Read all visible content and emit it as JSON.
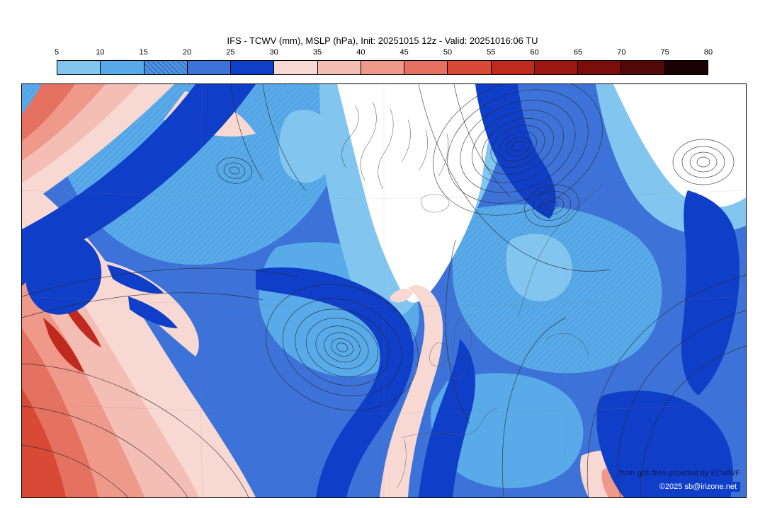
{
  "title": "IFS - TCWV (mm), MSLP (hPa), Init: 20251015 12z - Valid: 20251016:06 TU",
  "colorbar": {
    "unit": "mm",
    "ticks": [
      "5",
      "10",
      "15",
      "20",
      "25",
      "30",
      "35",
      "40",
      "45",
      "50",
      "55",
      "60",
      "65",
      "70",
      "75",
      "80"
    ],
    "segment_colors": [
      "#82c6f0",
      "#58aae8",
      "#4d94e0",
      "#3d72d8",
      "#0f3ec8",
      "#f8d8d2",
      "#f4beb4",
      "#ee998a",
      "#e57260",
      "#d94a36",
      "#c02a1e",
      "#9e1812",
      "#7a0e0a",
      "#520806",
      "#180302"
    ],
    "hatched_segment_index": 2
  },
  "map": {
    "attribution": {
      "line1": "from grib files provided by ECMWF",
      "line2": "©2025 sb@irizone.net"
    }
  },
  "palette": {
    "white": "#ffffff",
    "blue1": "#82c6f0",
    "blue2": "#58aae8",
    "blue3": "#3d72d8",
    "blue4": "#0f3ec8",
    "pink1": "#f8d8d2",
    "pink2": "#f4beb4",
    "red1": "#ee998a",
    "red2": "#e57260",
    "red3": "#d94a36",
    "red4": "#c02a1e",
    "isobar": "#2b2b2b",
    "coast": "#555555"
  }
}
